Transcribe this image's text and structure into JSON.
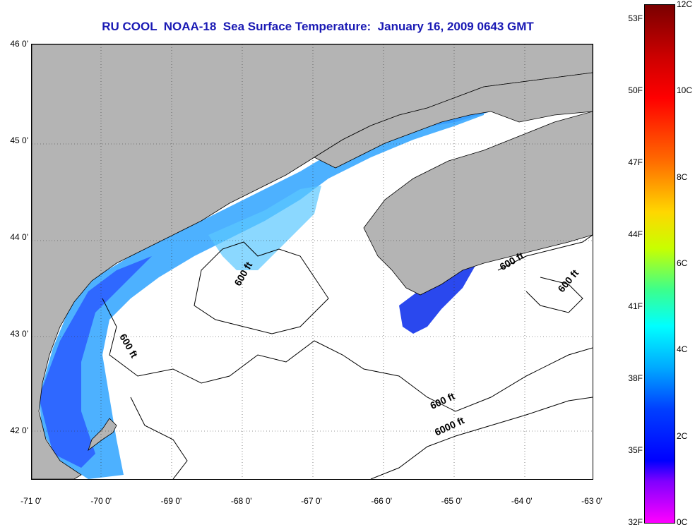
{
  "title": "RU COOL  NOAA-18  Sea Surface Temperature:  January 16, 2009 0643 GMT",
  "axes": {
    "y_ticks": [
      "46 0'",
      "45 0'",
      "44 0'",
      "43 0'",
      "42 0'"
    ],
    "x_ticks": [
      "-71 0'",
      "-70 0'",
      "-69 0'",
      "-68 0'",
      "-67 0'",
      "-66 0'",
      "-65 0'",
      "-64 0'",
      "-63 0'"
    ],
    "lat_range": [
      41.5,
      46.0
    ],
    "lon_range": [
      -71.0,
      -63.0
    ],
    "grid": "dotted"
  },
  "contour_labels": [
    "600 ft",
    "600 ft",
    "600 ft",
    "600 ft",
    "6000 ft"
  ],
  "colorbar": {
    "fahrenheit_labels": [
      "53F",
      "50F",
      "47F",
      "44F",
      "41F",
      "38F",
      "35F",
      "32F"
    ],
    "celsius_labels": [
      "12C",
      "10C",
      "8C",
      "6C",
      "4C",
      "2C",
      "0C"
    ],
    "range_c": [
      0,
      12
    ],
    "range_f": [
      32,
      53.6
    ]
  },
  "colors": {
    "land": "#b4b4b4",
    "cold_water": "#1e64ff",
    "warm_water": "#50c8ff",
    "title": "#1a1ab4"
  }
}
